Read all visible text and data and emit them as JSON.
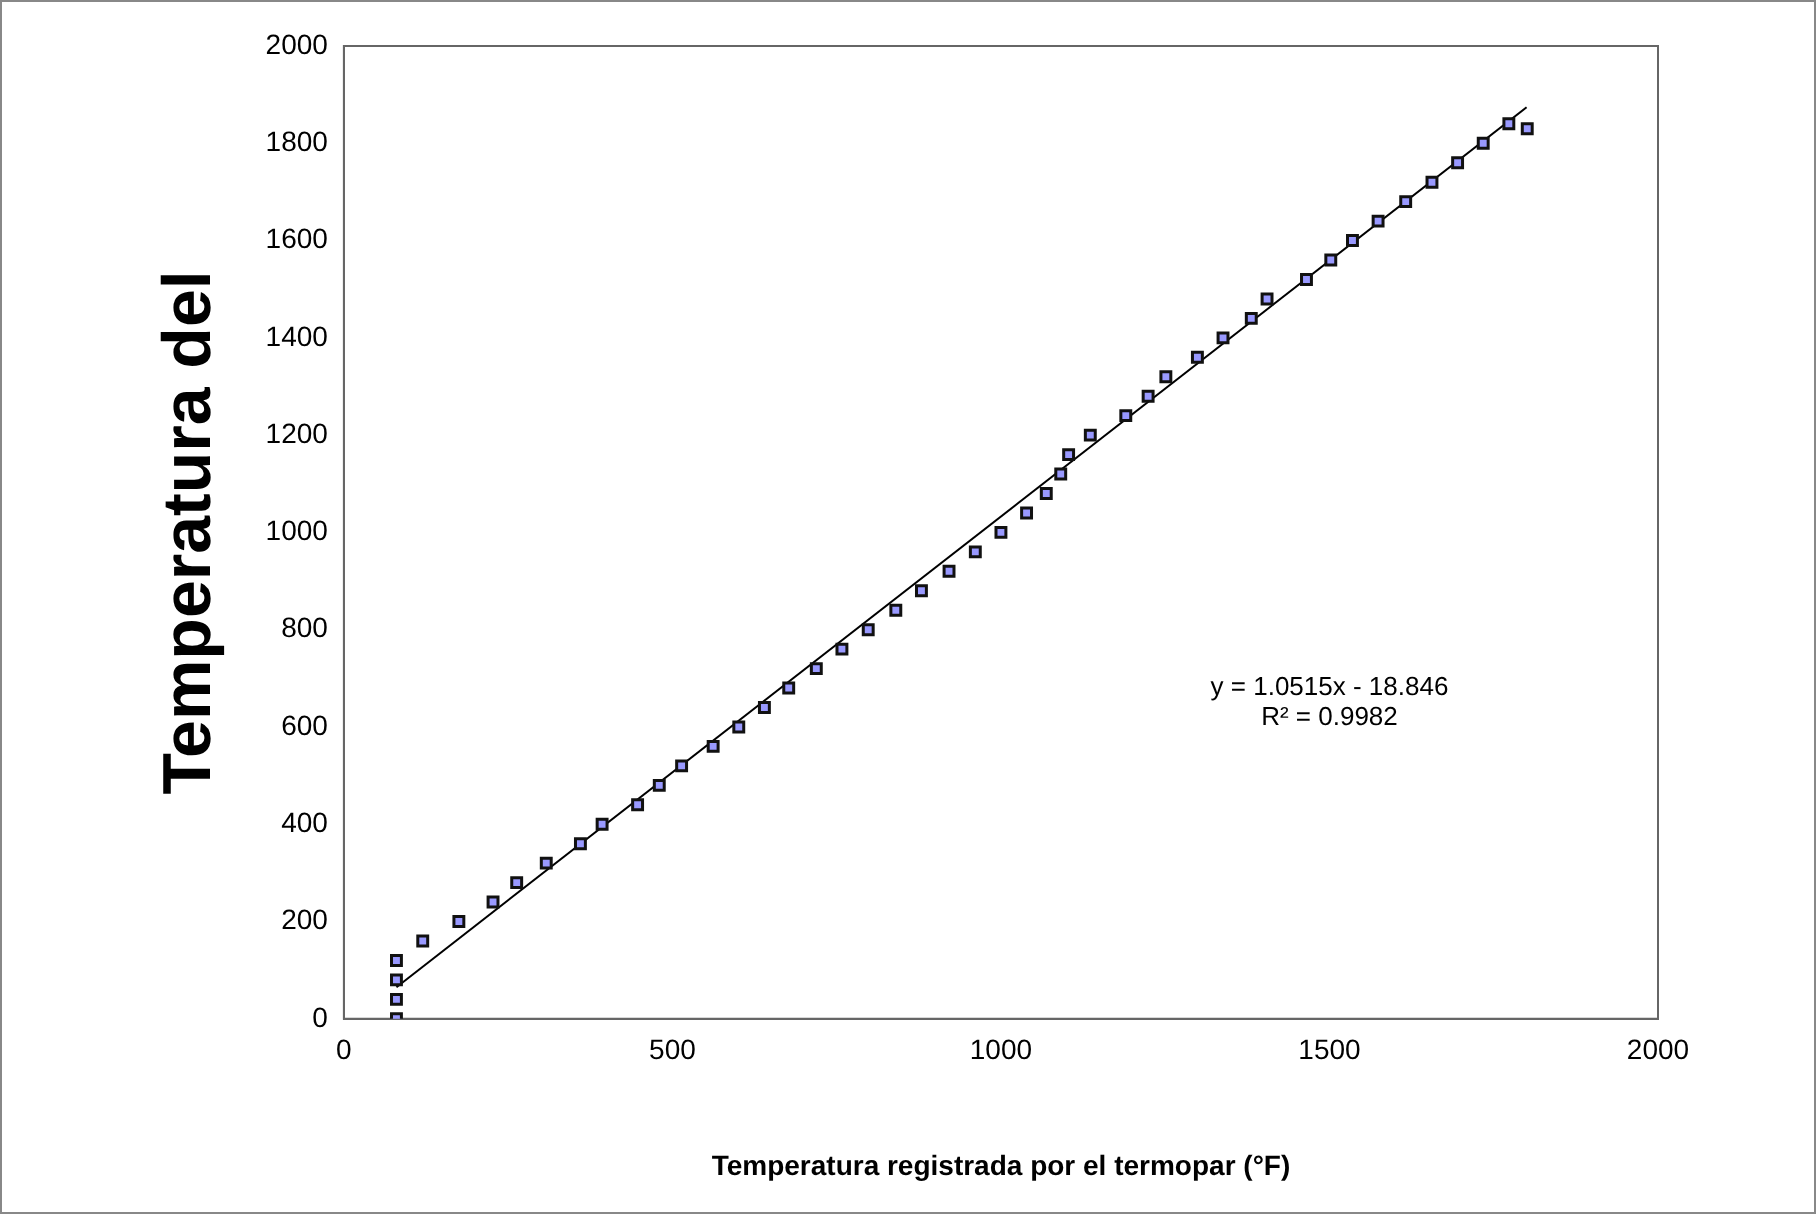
{
  "chart_data": {
    "type": "scatter",
    "xlabel": "Temperatura registrada por el termopar (°F)",
    "ylabel": "Temperatura del",
    "xlim": [
      0,
      2000
    ],
    "ylim": [
      0,
      2000
    ],
    "xticks": [
      0,
      500,
      1000,
      1500,
      2000
    ],
    "yticks": [
      0,
      200,
      400,
      600,
      800,
      1000,
      1200,
      1400,
      1600,
      1800,
      2000
    ],
    "grid": false,
    "legend": false,
    "marker": "square",
    "annotations": [
      "y = 1.0515x - 18.846",
      "R² = 0.9982"
    ],
    "series": [
      {
        "color": "#9999ff",
        "x": [
          80,
          80,
          80,
          80,
          120,
          175,
          227,
          263,
          308,
          360,
          393,
          447,
          480,
          514,
          562,
          601,
          640,
          677,
          719,
          758,
          798,
          840,
          879,
          921,
          961,
          1000,
          1039,
          1069,
          1091,
          1103,
          1136,
          1190,
          1224,
          1251,
          1299,
          1338,
          1381,
          1405,
          1465,
          1502,
          1535,
          1574,
          1616,
          1656,
          1695,
          1734,
          1773,
          1801
        ],
        "values": [
          0,
          40,
          80,
          120,
          160,
          200,
          240,
          280,
          320,
          360,
          400,
          440,
          480,
          520,
          560,
          600,
          640,
          680,
          720,
          760,
          800,
          840,
          880,
          920,
          960,
          1000,
          1040,
          1080,
          1120,
          1160,
          1200,
          1240,
          1280,
          1320,
          1360,
          1400,
          1440,
          1480,
          1520,
          1560,
          1600,
          1640,
          1680,
          1720,
          1760,
          1800,
          1840,
          1830
        ]
      },
      {
        "type": "line",
        "color": "#000000",
        "marker": "none",
        "x": [
          80,
          1800
        ],
        "values": [
          65,
          1874
        ]
      }
    ]
  }
}
